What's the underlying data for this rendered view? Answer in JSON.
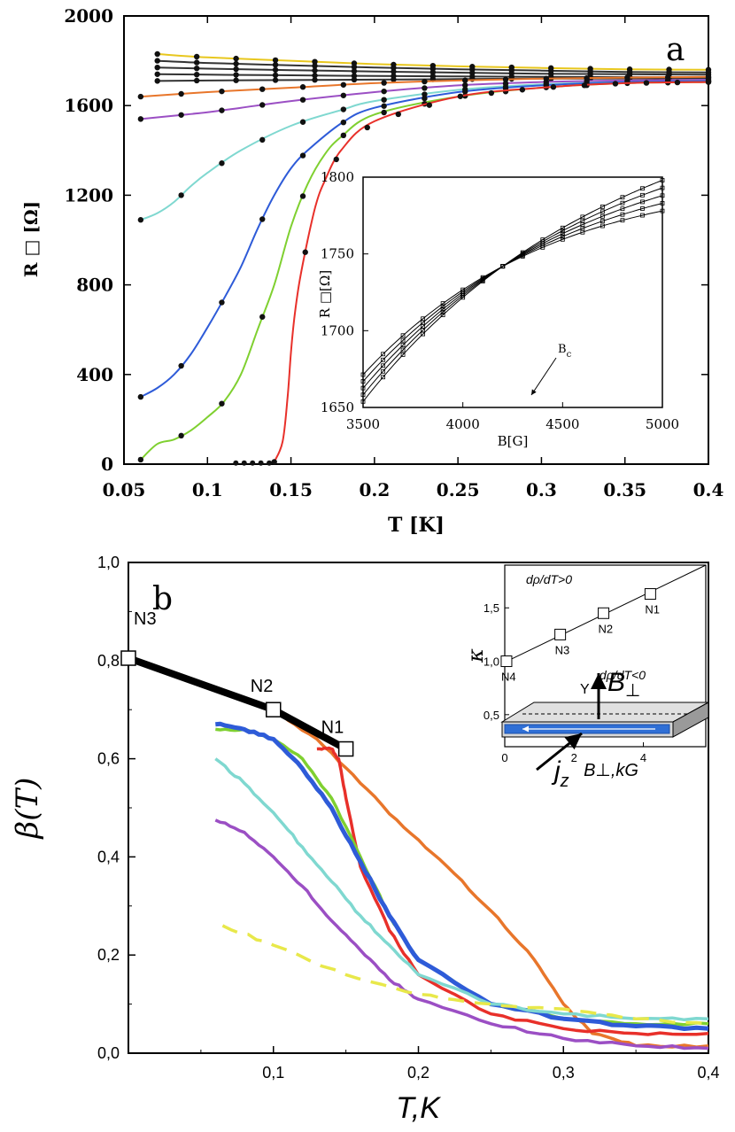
{
  "chart_data": [
    {
      "type": "line",
      "panel_label": "a",
      "xlabel": "T [K]",
      "ylabel": "R □ [Ω]",
      "xlim": [
        0.05,
        0.4
      ],
      "ylim": [
        0,
        2000
      ],
      "x_ticks": [
        "0.05",
        "0.1",
        "0.15",
        "0.2",
        "0.25",
        "0.3",
        "0.35",
        "0.4"
      ],
      "y_ticks": [
        "0",
        "400",
        "800",
        "1200",
        "1600",
        "2000"
      ],
      "grid": false,
      "markers": true,
      "series": [
        {
          "color": "#e8c71e",
          "x": [
            0.07,
            0.1,
            0.15,
            0.2,
            0.25,
            0.3,
            0.35,
            0.4
          ],
          "y": [
            1830,
            1815,
            1800,
            1785,
            1775,
            1768,
            1762,
            1760
          ]
        },
        {
          "color": "#333333",
          "x": [
            0.07,
            0.1,
            0.15,
            0.2,
            0.25,
            0.3,
            0.35,
            0.4
          ],
          "y": [
            1800,
            1790,
            1780,
            1770,
            1762,
            1756,
            1750,
            1748
          ]
        },
        {
          "color": "#333333",
          "x": [
            0.07,
            0.1,
            0.15,
            0.2,
            0.25,
            0.3,
            0.35,
            0.4
          ],
          "y": [
            1770,
            1765,
            1758,
            1752,
            1747,
            1742,
            1740,
            1738
          ]
        },
        {
          "color": "#333333",
          "x": [
            0.07,
            0.1,
            0.15,
            0.2,
            0.25,
            0.3,
            0.35,
            0.4
          ],
          "y": [
            1740,
            1738,
            1735,
            1732,
            1730,
            1728,
            1727,
            1726
          ]
        },
        {
          "color": "#333333",
          "x": [
            0.07,
            0.1,
            0.15,
            0.2,
            0.25,
            0.3,
            0.35,
            0.4
          ],
          "y": [
            1710,
            1712,
            1714,
            1716,
            1718,
            1720,
            1721,
            1722
          ]
        },
        {
          "color": "#e8762b",
          "x": [
            0.06,
            0.1,
            0.15,
            0.2,
            0.25,
            0.3,
            0.35,
            0.4
          ],
          "y": [
            1640,
            1660,
            1680,
            1700,
            1712,
            1720,
            1725,
            1728
          ]
        },
        {
          "color": "#9b4fc4",
          "x": [
            0.06,
            0.08,
            0.1,
            0.12,
            0.15,
            0.2,
            0.25,
            0.3,
            0.35,
            0.4
          ],
          "y": [
            1540,
            1555,
            1570,
            1590,
            1620,
            1660,
            1690,
            1705,
            1712,
            1715
          ]
        },
        {
          "color": "#7fd8d0",
          "x": [
            0.06,
            0.07,
            0.08,
            0.09,
            0.1,
            0.12,
            0.15,
            0.18,
            0.2,
            0.25,
            0.3,
            0.35,
            0.4
          ],
          "y": [
            1090,
            1120,
            1170,
            1240,
            1300,
            1400,
            1510,
            1580,
            1620,
            1670,
            1695,
            1705,
            1710
          ]
        },
        {
          "color": "#2e5bd8",
          "x": [
            0.06,
            0.07,
            0.08,
            0.09,
            0.1,
            0.11,
            0.12,
            0.13,
            0.14,
            0.15,
            0.16,
            0.18,
            0.2,
            0.25,
            0.3,
            0.35,
            0.4
          ],
          "y": [
            300,
            340,
            400,
            490,
            610,
            740,
            880,
            1050,
            1200,
            1320,
            1400,
            1520,
            1590,
            1660,
            1690,
            1705,
            1710
          ]
        },
        {
          "color": "#7fd030",
          "x": [
            0.06,
            0.07,
            0.08,
            0.09,
            0.1,
            0.11,
            0.12,
            0.13,
            0.14,
            0.15,
            0.16,
            0.17,
            0.18,
            0.2,
            0.25,
            0.3,
            0.35,
            0.4
          ],
          "y": [
            20,
            90,
            110,
            150,
            210,
            280,
            400,
            600,
            800,
            1060,
            1250,
            1380,
            1460,
            1560,
            1640,
            1680,
            1700,
            1705
          ]
        },
        {
          "color": "#e8302a",
          "x": [
            0.14,
            0.145,
            0.148,
            0.15,
            0.152,
            0.155,
            0.16,
            0.165,
            0.17,
            0.18,
            0.2,
            0.25,
            0.3,
            0.35,
            0.4
          ],
          "y": [
            10,
            100,
            300,
            500,
            650,
            810,
            1000,
            1160,
            1260,
            1400,
            1530,
            1640,
            1680,
            1700,
            1705
          ]
        }
      ],
      "inset": {
        "type": "line",
        "xlabel": "B[G]",
        "ylabel": "R □[Ω]",
        "xlim": [
          3500,
          5000
        ],
        "ylim": [
          1650,
          1800
        ],
        "x_ticks": [
          "3500",
          "4000",
          "4500",
          "5000"
        ],
        "y_ticks": [
          "1650",
          "1700",
          "1750",
          "1800"
        ],
        "annotation": "B",
        "annotation_sub": "c",
        "crossing_point": [
          4200,
          1735
        ],
        "series_count": 5
      }
    },
    {
      "type": "line",
      "panel_label": "b",
      "xlabel": "T,K",
      "ylabel": "β(T)",
      "xlim": [
        0.0,
        0.4
      ],
      "ylim": [
        0.0,
        1.0
      ],
      "x_ticks": [
        "0,1",
        "0,2",
        "0,3",
        "0,4"
      ],
      "y_ticks": [
        "0,0",
        "0,2",
        "0,4",
        "0,6",
        "0,8",
        "1,0"
      ],
      "grid": false,
      "series": [
        {
          "color": "#000000",
          "style": "thick",
          "markers": "square",
          "point_labels": [
            "N3",
            "N2",
            "N1"
          ],
          "x": [
            0.0,
            0.1,
            0.15
          ],
          "y": [
            0.805,
            0.7,
            0.62
          ]
        },
        {
          "color": "#e8762b",
          "x": [
            0.1,
            0.13,
            0.16,
            0.19,
            0.22,
            0.25,
            0.28,
            0.3,
            0.32,
            0.35,
            0.4
          ],
          "y": [
            0.7,
            0.64,
            0.55,
            0.46,
            0.38,
            0.29,
            0.19,
            0.1,
            0.04,
            0.015,
            0.015
          ]
        },
        {
          "color": "#e8302a",
          "x": [
            0.13,
            0.14,
            0.145,
            0.15,
            0.16,
            0.18,
            0.2,
            0.25,
            0.3,
            0.35,
            0.4
          ],
          "y": [
            0.62,
            0.62,
            0.6,
            0.52,
            0.38,
            0.25,
            0.16,
            0.08,
            0.05,
            0.04,
            0.04
          ]
        },
        {
          "color": "#7fd030",
          "x": [
            0.06,
            0.08,
            0.1,
            0.12,
            0.14,
            0.16,
            0.18,
            0.2,
            0.25,
            0.3,
            0.35,
            0.4
          ],
          "y": [
            0.66,
            0.66,
            0.64,
            0.6,
            0.52,
            0.4,
            0.28,
            0.19,
            0.1,
            0.07,
            0.06,
            0.06
          ]
        },
        {
          "color": "#2e5bd8",
          "style": "thick",
          "x": [
            0.06,
            0.08,
            0.1,
            0.12,
            0.14,
            0.16,
            0.18,
            0.2,
            0.25,
            0.3,
            0.35,
            0.4
          ],
          "y": [
            0.67,
            0.66,
            0.64,
            0.58,
            0.5,
            0.39,
            0.28,
            0.19,
            0.1,
            0.07,
            0.055,
            0.05
          ]
        },
        {
          "color": "#7fd8d0",
          "x": [
            0.06,
            0.08,
            0.1,
            0.12,
            0.14,
            0.16,
            0.18,
            0.2,
            0.25,
            0.3,
            0.35,
            0.4
          ],
          "y": [
            0.6,
            0.55,
            0.49,
            0.42,
            0.35,
            0.28,
            0.22,
            0.16,
            0.1,
            0.08,
            0.07,
            0.07
          ]
        },
        {
          "color": "#9b4fc4",
          "x": [
            0.06,
            0.08,
            0.1,
            0.12,
            0.14,
            0.16,
            0.18,
            0.2,
            0.25,
            0.3,
            0.35,
            0.4
          ],
          "y": [
            0.475,
            0.45,
            0.4,
            0.34,
            0.27,
            0.21,
            0.15,
            0.11,
            0.06,
            0.03,
            0.015,
            0.01
          ]
        },
        {
          "color": "#e8e84a",
          "style": "dashed",
          "x": [
            0.065,
            0.1,
            0.15,
            0.2,
            0.25,
            0.3,
            0.35,
            0.4
          ],
          "y": [
            0.26,
            0.22,
            0.16,
            0.12,
            0.1,
            0.09,
            0.07,
            0.06
          ]
        }
      ],
      "inset": {
        "type": "line",
        "xlabel": "B⊥,kG",
        "ylabel": "κ",
        "xlim": [
          0,
          5.8
        ],
        "ylim": [
          0.2,
          1.9
        ],
        "x_ticks": [
          "0",
          "2",
          "4"
        ],
        "y_ticks": [
          "0,5",
          "1,0",
          "1,5"
        ],
        "text_above": "dρ/dT>0",
        "text_below": "dρ/dT<0",
        "points": [
          {
            "label": "N4",
            "x": 0.05,
            "y": 1.0
          },
          {
            "label": "N3",
            "x": 1.6,
            "y": 1.25
          },
          {
            "label": "N2",
            "x": 2.85,
            "y": 1.45
          },
          {
            "label": "N1",
            "x": 4.2,
            "y": 1.63
          }
        ],
        "fit_line": {
          "x": [
            0,
            5.8
          ],
          "y": [
            0.99,
            1.9
          ]
        }
      },
      "schematic_labels": {
        "axis": "Y",
        "field": "B",
        "field_sub": "⊥",
        "current": "j",
        "current_sub": "z"
      }
    }
  ]
}
